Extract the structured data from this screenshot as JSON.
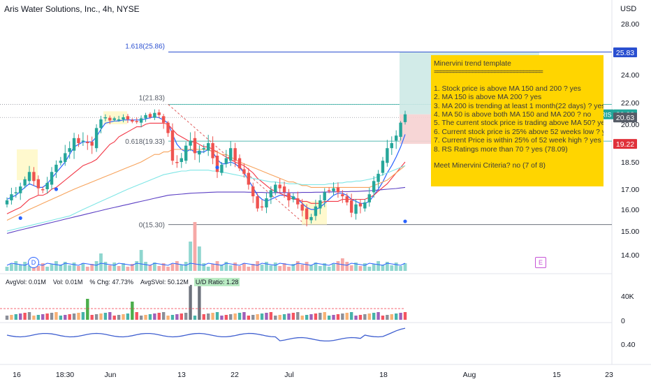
{
  "header": {
    "title": "Aris Water Solutions, Inc., 4h, NYSE",
    "currency": "USD"
  },
  "price_axis": {
    "ticks": [
      "28.00",
      "26.00",
      "24.00",
      "22.00",
      "20.00",
      "18.50",
      "17.00",
      "16.00",
      "15.00",
      "14.00"
    ],
    "badges": [
      {
        "label": "25.83",
        "value": 25.83,
        "color": "#2a4fd0"
      },
      {
        "label": "20.92",
        "value": 20.92,
        "color": "#22a69a"
      },
      {
        "label": "20.63",
        "value": 20.63,
        "color": "#555b66"
      },
      {
        "label": "19.22",
        "value": 19.22,
        "color": "#e0313a"
      }
    ],
    "symbol_tag": "ARIS"
  },
  "volume_axis": {
    "ticks": [
      "40K",
      "0"
    ]
  },
  "rs_axis": {
    "ticks": [
      "0.40"
    ]
  },
  "time_axis": {
    "ticks": [
      "16",
      "18:30",
      "Jun",
      "13",
      "22",
      "Jul",
      "18",
      "Aug",
      "15",
      "23"
    ]
  },
  "fib_labels": [
    {
      "label": "1.618(25.86)",
      "value": 25.86
    },
    {
      "label": "1(21.83)",
      "value": 21.83
    },
    {
      "label": "0.618(19.33)",
      "value": 19.33
    },
    {
      "label": "0(15.30)",
      "value": 15.3
    }
  ],
  "minervini": {
    "title": "Minervini trend template",
    "separator": "==================================",
    "items": [
      "1. Stock price is above MA 150 and 200 ? yes",
      "2. MA 150 is above MA 200 ? yes",
      "3. MA 200 is trending at least 1 month(22 days) ? yes",
      "4. MA 50 is above both MA 150 and MA 200 ? no",
      "5. The current stock price is trading  above MA 50? yes",
      "6. Current stock price is 25% above 52 weeks low ? yes",
      "7. Current Price is within 25% of 52 week high ? yes",
      "8. RS Ratings more than 70 ? yes (78.09)"
    ],
    "conclusion": "Meet Minervini Criteria? no (7 of 8)"
  },
  "volume_stats": {
    "avgvol": "AvgVol: 0.01M",
    "vol": "Vol: 0.01M",
    "chg": "% Chg: 47.73%",
    "avgsvol": "AvgSVol: 50.12M",
    "ud": "U/D Ratio: 1.28"
  },
  "events": {
    "dividend": "D",
    "earnings": "E"
  },
  "colors": {
    "up": "#26a69a",
    "down": "#ef5350",
    "ma_fast": "#2962ff",
    "ma_red": "#f23645",
    "ma_orange": "#f7a35c",
    "ma_cyan": "#7fe6e6",
    "ma_purple": "#5b3fc4",
    "rs": "#3f5fd0",
    "note_bg": "#ffd500"
  },
  "chart_data": {
    "type": "candlestick",
    "symbol": "ARIS",
    "timeframe": "4h",
    "closes": [
      16.45,
      16.75,
      16.85,
      17.15,
      17.55,
      17.95,
      17.45,
      17.05,
      16.95,
      17.35,
      17.95,
      18.35,
      18.55,
      18.85,
      19.05,
      19.45,
      19.25,
      19.35,
      19.25,
      19.15,
      19.85,
      20.45,
      20.65,
      20.35,
      20.55,
      20.45,
      20.65,
      20.45,
      20.25,
      20.25,
      20.55,
      20.85,
      20.65,
      21.05,
      20.85,
      20.15,
      19.65,
      18.55,
      18.45,
      18.65,
      19.15,
      19.35,
      18.85,
      18.95,
      19.05,
      19.25,
      18.65,
      17.95,
      18.35,
      18.65,
      19.05,
      18.55,
      18.15,
      17.85,
      17.25,
      16.65,
      16.05,
      16.15,
      16.55,
      16.95,
      17.25,
      17.05,
      16.85,
      16.45,
      16.65,
      16.25,
      15.95,
      15.55,
      15.65,
      16.15,
      16.45,
      16.85,
      16.95,
      17.05,
      16.85,
      16.65,
      16.35,
      15.85,
      16.25,
      16.15,
      16.35,
      16.75,
      17.45,
      17.85,
      18.55,
      19.05,
      19.25,
      19.55,
      20.15,
      20.92
    ],
    "series": [
      {
        "name": "MA 10",
        "values": [
          16.5,
          16.6,
          16.7,
          16.9,
          17.1,
          17.3,
          17.2,
          17.1,
          17.1,
          17.3,
          17.6,
          17.9,
          18.2,
          18.5,
          18.8,
          19.1,
          19.2,
          19.3,
          19.3,
          19.3,
          19.5,
          19.8,
          20.1,
          20.2,
          20.3,
          20.3,
          20.4,
          20.4,
          20.4,
          20.4,
          20.4,
          20.5,
          20.6,
          20.7,
          20.6,
          20.4,
          20.1,
          19.6,
          19.2,
          19.0,
          18.9,
          19.0,
          18.9,
          18.9,
          18.9,
          19.0,
          18.9,
          18.6,
          18.4,
          18.4,
          18.5,
          18.4,
          18.2,
          17.9,
          17.5,
          17.1,
          16.7,
          16.5,
          16.4,
          16.5,
          16.6,
          16.7,
          16.7,
          16.7,
          16.6,
          16.5,
          16.3,
          16.1,
          16.0,
          16.0,
          16.1,
          16.3,
          16.5,
          16.7,
          16.8,
          16.8,
          16.7,
          16.5,
          16.4,
          16.3,
          16.3,
          16.4,
          16.7,
          17.0,
          17.4,
          17.9,
          18.3,
          18.7,
          19.1,
          19.6
        ]
      },
      {
        "name": "MA 20",
        "values": [
          15.8,
          15.9,
          16.0,
          16.1,
          16.3,
          16.5,
          16.6,
          16.7,
          16.7,
          16.8,
          17.0,
          17.1,
          17.3,
          17.5,
          17.7,
          17.9,
          18.1,
          18.3,
          18.4,
          18.5,
          18.6,
          18.8,
          19.0,
          19.2,
          19.3,
          19.5,
          19.6,
          19.7,
          19.8,
          19.9,
          19.9,
          20.0,
          20.1,
          20.1,
          20.1,
          20.1,
          20.0,
          19.8,
          19.6,
          19.5,
          19.4,
          19.3,
          19.3,
          19.2,
          19.1,
          19.1,
          19.0,
          18.9,
          18.8,
          18.7,
          18.6,
          18.5,
          18.4,
          18.3,
          18.1,
          17.9,
          17.6,
          17.4,
          17.2,
          17.0,
          16.9,
          16.8,
          16.7,
          16.6,
          16.5,
          16.5,
          16.4,
          16.4,
          16.3,
          16.3,
          16.3,
          16.4,
          16.4,
          16.4,
          16.4,
          16.5,
          16.5,
          16.5,
          16.5,
          16.5,
          16.5,
          16.6,
          16.7,
          16.9,
          17.1,
          17.3,
          17.6,
          17.9,
          18.2,
          18.5
        ]
      },
      {
        "name": "MA 50",
        "values": [
          15.5,
          15.6,
          15.7,
          15.8,
          15.9,
          16.0,
          16.1,
          16.2,
          16.3,
          16.4,
          16.5,
          16.6,
          16.7,
          16.8,
          16.9,
          17.0,
          17.1,
          17.2,
          17.3,
          17.4,
          17.5,
          17.6,
          17.7,
          17.8,
          17.9,
          18.0,
          18.1,
          18.2,
          18.3,
          18.4,
          18.5,
          18.6,
          18.7,
          18.8,
          18.8,
          18.9,
          18.9,
          19.0,
          19.0,
          19.0,
          19.0,
          19.0,
          19.0,
          19.0,
          19.0,
          19.0,
          18.9,
          18.9,
          18.8,
          18.8,
          18.7,
          18.6,
          18.5,
          18.4,
          18.3,
          18.2,
          18.1,
          18.0,
          17.9,
          17.8,
          17.7,
          17.6,
          17.5,
          17.4,
          17.4,
          17.3,
          17.2,
          17.2,
          17.1,
          17.1,
          17.1,
          17.1,
          17.1,
          17.1,
          17.1,
          17.1,
          17.1,
          17.1,
          17.1,
          17.1,
          17.1,
          17.1,
          17.2,
          17.3,
          17.4,
          17.5,
          17.7,
          17.9,
          18.1,
          18.3
        ]
      },
      {
        "name": "MA 150",
        "values": [
          15.0,
          15.05,
          15.1,
          15.15,
          15.2,
          15.25,
          15.3,
          15.35,
          15.4,
          15.45,
          15.5,
          15.55,
          15.6,
          15.65,
          15.7,
          15.8,
          15.9,
          16.0,
          16.1,
          16.2,
          16.3,
          16.4,
          16.5,
          16.6,
          16.7,
          16.8,
          16.9,
          17.0,
          17.1,
          17.2,
          17.3,
          17.4,
          17.5,
          17.6,
          17.7,
          17.8,
          17.85,
          17.9,
          17.95,
          18.0,
          18.0,
          18.05,
          18.05,
          18.05,
          18.05,
          18.05,
          18.0,
          18.0,
          17.95,
          17.9,
          17.85,
          17.8,
          17.75,
          17.7,
          17.65,
          17.6,
          17.55,
          17.5,
          17.45,
          17.4,
          17.4,
          17.35,
          17.35,
          17.3,
          17.3,
          17.3,
          17.25,
          17.25,
          17.25,
          17.25,
          17.25,
          17.25,
          17.3,
          17.3,
          17.35,
          17.35,
          17.4,
          17.4,
          17.45,
          17.45,
          17.5,
          17.55,
          17.6,
          17.7,
          17.8,
          17.9,
          18.0,
          18.1,
          18.2,
          18.3
        ]
      },
      {
        "name": "MA 200",
        "values": [
          14.9,
          14.95,
          15.0,
          15.05,
          15.1,
          15.15,
          15.2,
          15.25,
          15.3,
          15.35,
          15.4,
          15.45,
          15.5,
          15.55,
          15.6,
          15.65,
          15.7,
          15.75,
          15.8,
          15.85,
          15.9,
          15.95,
          16.0,
          16.05,
          16.1,
          16.15,
          16.2,
          16.25,
          16.3,
          16.35,
          16.4,
          16.45,
          16.5,
          16.55,
          16.6,
          16.65,
          16.7,
          16.72,
          16.74,
          16.76,
          16.78,
          16.8,
          16.81,
          16.82,
          16.83,
          16.84,
          16.85,
          16.86,
          16.86,
          16.86,
          16.86,
          16.86,
          16.86,
          16.86,
          16.85,
          16.85,
          16.84,
          16.84,
          16.83,
          16.83,
          16.83,
          16.83,
          16.83,
          16.83,
          16.83,
          16.83,
          16.84,
          16.84,
          16.84,
          16.85,
          16.85,
          16.86,
          16.86,
          16.87,
          16.87,
          16.88,
          16.88,
          16.89,
          16.89,
          16.9,
          16.91,
          16.92,
          16.94,
          16.96,
          16.98,
          17.0,
          17.02,
          17.04,
          17.07,
          17.1
        ]
      }
    ],
    "fib_levels": [
      {
        "ratio": 1.618,
        "price": 25.86
      },
      {
        "ratio": 1,
        "price": 21.83
      },
      {
        "ratio": 0.618,
        "price": 19.33
      },
      {
        "ratio": 0,
        "price": 15.3
      }
    ],
    "ylim": [
      13.5,
      29.0
    ]
  }
}
